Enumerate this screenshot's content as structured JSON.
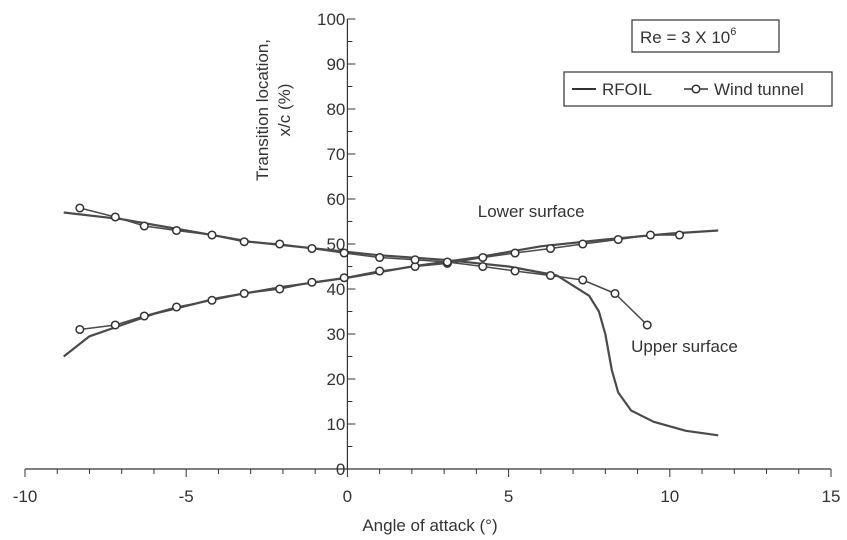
{
  "chart_data": {
    "type": "line",
    "title": "",
    "xlabel": "Angle of attack (°)",
    "ylabel_lines": [
      "Transition location,",
      "x/c (%)"
    ],
    "xlim": [
      -10,
      15
    ],
    "ylim": [
      0,
      100
    ],
    "x_ticks": [
      -10,
      -5,
      0,
      5,
      10,
      15
    ],
    "y_ticks": [
      0,
      10,
      20,
      30,
      40,
      50,
      60,
      70,
      80,
      90,
      100
    ],
    "x_tick_labels": [
      "-10",
      "-5",
      "0",
      "5",
      "10",
      "15"
    ],
    "y_tick_labels": [
      "0",
      "10",
      "20",
      "30",
      "40",
      "50",
      "60",
      "70",
      "80",
      "90",
      "100"
    ],
    "reynolds_box": {
      "main": "Re = 3 X 10",
      "sup": "6"
    },
    "legend": {
      "placement": "top-right",
      "entries": [
        {
          "label": "RFOIL",
          "style": "line"
        },
        {
          "label": "Wind tunnel",
          "style": "line-circle"
        }
      ]
    },
    "annotations": [
      {
        "text": "Lower surface",
        "x": 5.7,
        "y": 56
      },
      {
        "text": "Upper surface",
        "x": 8.8,
        "y": 26
      }
    ],
    "series": [
      {
        "group": "RFOIL",
        "surface": "lower",
        "style": "line",
        "x": [
          -8.8,
          -8.0,
          -6.0,
          -4.0,
          -2.0,
          0.0,
          2.0,
          4.0,
          6.0,
          8.0,
          10.0,
          11.5
        ],
        "y": [
          25,
          29.5,
          34.5,
          38,
          40.5,
          42.5,
          45,
          47,
          49.5,
          51,
          52.3,
          53
        ]
      },
      {
        "group": "Wind tunnel",
        "surface": "lower",
        "style": "line-circle",
        "x": [
          -8.3,
          -7.2,
          -6.3,
          -5.3,
          -4.2,
          -3.2,
          -2.1,
          -1.1,
          -0.1,
          1.0,
          2.1,
          3.1,
          4.2,
          5.2,
          6.3,
          7.3,
          8.4,
          9.4,
          10.3
        ],
        "y": [
          31,
          32,
          34,
          36,
          37.5,
          39,
          40,
          41.5,
          42.5,
          44,
          45,
          45.7,
          47,
          48,
          49,
          50,
          51,
          52,
          52
        ]
      },
      {
        "group": "RFOIL",
        "surface": "upper",
        "style": "line",
        "x": [
          -8.8,
          -7.0,
          -5.0,
          -3.0,
          -1.0,
          1.0,
          3.0,
          5.0,
          6.5,
          7.5,
          7.8,
          8.0,
          8.2,
          8.4,
          8.8,
          9.5,
          10.5,
          11.5
        ],
        "y": [
          57,
          55.5,
          53,
          50.5,
          49,
          47.5,
          46.5,
          45,
          43,
          38.5,
          35,
          30,
          22,
          17,
          13,
          10.5,
          8.5,
          7.5
        ]
      },
      {
        "group": "Wind tunnel",
        "surface": "upper",
        "style": "line-circle",
        "x": [
          -8.3,
          -7.2,
          -6.3,
          -5.3,
          -4.2,
          -3.2,
          -2.1,
          -1.1,
          -0.1,
          1.0,
          2.1,
          3.1,
          4.2,
          5.2,
          6.3,
          7.3,
          8.3,
          9.3
        ],
        "y": [
          58,
          56,
          54,
          53,
          52,
          50.5,
          50,
          49,
          48,
          47,
          46.5,
          46,
          45,
          44,
          43,
          42,
          39,
          32
        ]
      }
    ]
  }
}
